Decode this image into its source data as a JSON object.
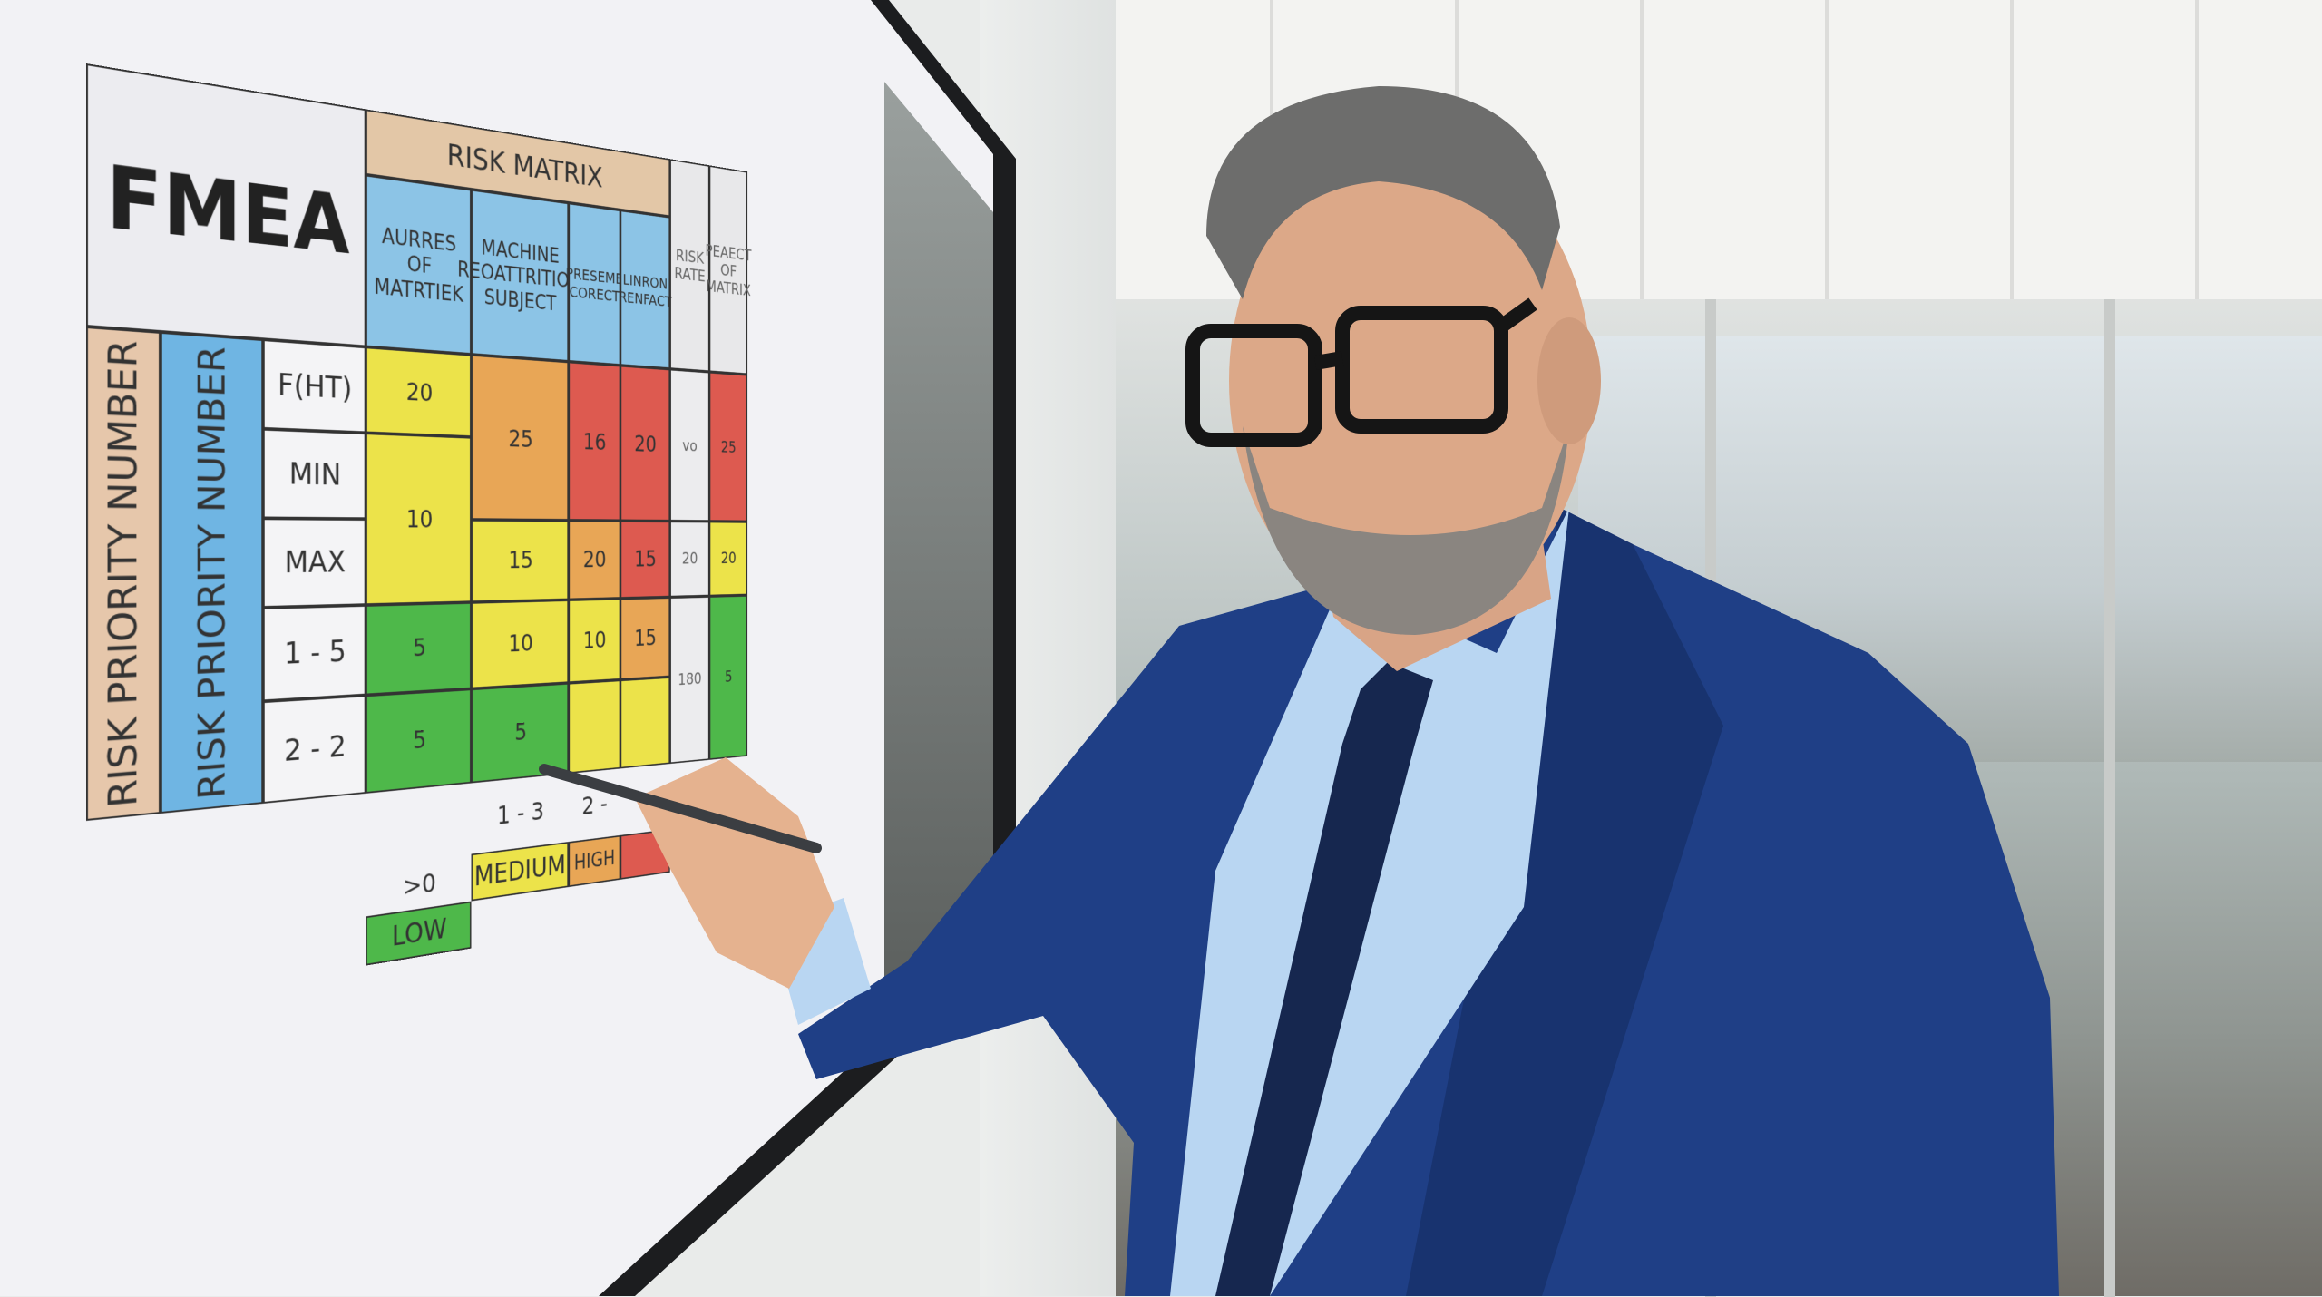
{
  "board": {
    "title": "FMEA",
    "header": "RISK MATRIX",
    "columns": [
      "AURRES OF MATRTIEK",
      "MACHINE RЕОATTRITION SUBJECT",
      "PRESEME CORECT",
      "LINRON RENFACT",
      "RISK RATE",
      "PEAECT OF MATRIX"
    ],
    "vertical_labels": [
      "RISK PRIORITY NUMBER",
      "RISK PRIORITY NUMBER"
    ],
    "row_labels": [
      "F(HT)",
      "MIN",
      "MAX",
      "1 - 5",
      "2 - 2"
    ],
    "cells": {
      "c1": [
        "20",
        "10",
        "5",
        "5"
      ],
      "c2": [
        "25",
        "15",
        "10",
        "5"
      ],
      "c3": [
        "16",
        "20",
        "10"
      ],
      "c4": [
        "20",
        "15",
        "15"
      ],
      "c5": [
        "vo",
        "20",
        "180"
      ],
      "c6": [
        "25",
        "20",
        "5"
      ]
    },
    "axis_labels": [
      ">0",
      "1 - 3",
      "2 -"
    ],
    "legend": [
      "LOW",
      "MEDIUM",
      "HIGH"
    ]
  },
  "colors": {
    "low": "#4eb84a",
    "medium": "#ece34a",
    "high": "#e8a656",
    "critical": "#dd5a50",
    "suit": "#1f3f86",
    "shirt": "#b9d6f2",
    "tie": "#16274f"
  }
}
